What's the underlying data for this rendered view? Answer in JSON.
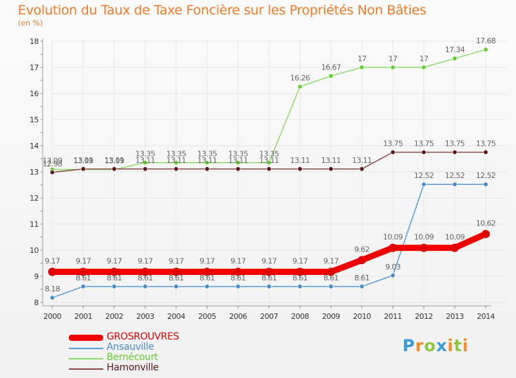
{
  "chart_data": {
    "type": "line",
    "title": "Evolution du Taux de Taxe Foncière sur les Propriétés Non Bâties",
    "ylabel": "(en %)",
    "xlabel": "",
    "categories": [
      "2000",
      "2001",
      "2002",
      "2003",
      "2004",
      "2005",
      "2006",
      "2007",
      "2008",
      "2009",
      "2010",
      "2011",
      "2012",
      "2013",
      "2014"
    ],
    "yticks": [
      8,
      9,
      10,
      11,
      12,
      13,
      14,
      15,
      16,
      17,
      18
    ],
    "ylim": [
      8,
      18
    ],
    "series": [
      {
        "name": "GROSROUVRES",
        "color": "#f00000",
        "marker": "#e00000",
        "thick": true,
        "values": [
          9.17,
          9.17,
          9.17,
          9.17,
          9.17,
          9.17,
          9.17,
          9.17,
          9.17,
          9.17,
          9.62,
          10.09,
          10.09,
          10.09,
          10.62
        ],
        "labels": [
          "9.17",
          "9.17",
          "9.17",
          "9.17",
          "9.17",
          "9.17",
          "9.17",
          "9.17",
          "9.17",
          "9.17",
          "9.62",
          "10.09",
          "10.09",
          "10.09",
          "10.62"
        ]
      },
      {
        "name": "Ansauville",
        "color": "#5b9bd5",
        "marker": "#4a8ac6",
        "thick": false,
        "values": [
          8.18,
          8.61,
          8.61,
          8.61,
          8.61,
          8.61,
          8.61,
          8.61,
          8.61,
          8.61,
          8.61,
          9.03,
          12.52,
          12.52,
          12.52
        ],
        "labels": [
          "8.18",
          "8.61",
          "8.61",
          "8.61",
          "8.61",
          "8.61",
          "8.61",
          "8.61",
          "8.61",
          "8.61",
          "8.61",
          "9.03",
          "12.52",
          "12.52",
          "12.52"
        ]
      },
      {
        "name": "Bernécourt",
        "color": "#8fdc6a",
        "marker": "#66cc33",
        "thick": false,
        "values": [
          13.09,
          13.09,
          13.09,
          13.35,
          13.35,
          13.35,
          13.35,
          13.35,
          16.26,
          16.67,
          17,
          17,
          17,
          17.34,
          17.68
        ],
        "labels": [
          "13.09",
          "13.09",
          "13.09",
          "13.35",
          "13.35",
          "13.35",
          "13.35",
          "13.35",
          "16.26",
          "16.67",
          "17",
          "17",
          "17",
          "17.34",
          "17.68"
        ]
      },
      {
        "name": "Hamonville",
        "color": "#8b4a4a",
        "marker": "#5a1a1a",
        "thick": false,
        "values": [
          12.98,
          13.11,
          13.11,
          13.11,
          13.11,
          13.11,
          13.11,
          13.11,
          13.11,
          13.11,
          13.11,
          13.75,
          13.75,
          13.75,
          13.75
        ],
        "labels": [
          "12.98",
          "13.11",
          "13.11",
          "13.11",
          "13.11",
          "13.11",
          "13.11",
          "13.11",
          "13.11",
          "13.11",
          "13.11",
          "13.75",
          "13.75",
          "13.75",
          "13.75"
        ]
      }
    ],
    "legend": [
      "GROSROUVRES",
      "Ansauville",
      "Bernécourt",
      "Hamonville"
    ],
    "legend_position": "bottom-left"
  },
  "brand": {
    "text": "Proxiti",
    "letters": [
      "P",
      "r",
      "o",
      "x",
      "i",
      "t",
      "i"
    ],
    "colors": [
      "#3a9ad9",
      "#f28c28",
      "#8dc63f",
      "#3a9ad9",
      "#f28c28",
      "#8dc63f",
      "#f28c28"
    ]
  },
  "colors": {
    "title": "#f07a28",
    "axis": "#a0a0a0",
    "grid": "#e6e6e6",
    "label_text": "#666666"
  }
}
